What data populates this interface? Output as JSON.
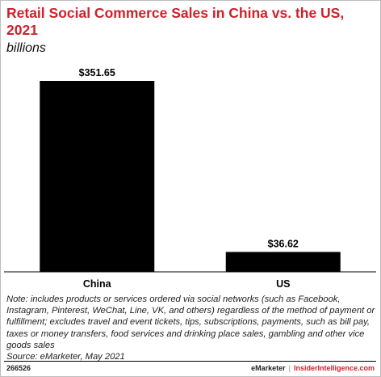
{
  "chart_data": {
    "type": "bar",
    "title": "Retail Social Commerce Sales in China vs. the US, 2021",
    "subtitle": "billions",
    "categories": [
      "China",
      "US"
    ],
    "values": [
      351.65,
      36.62
    ],
    "value_labels": [
      "$351.65",
      "$36.62"
    ],
    "xlabel": "",
    "ylabel": "",
    "ylim": [
      0,
      351.65
    ],
    "grid": false,
    "legend": "none",
    "bar_color": "#000000"
  },
  "notes": {
    "note": "Note: includes products or services ordered via social networks (such as Facebook, Instagram, Pinterest, WeChat, Line, VK, and others) regardless of the method of payment or fulfillment; excludes travel and event tickets, tips, subscriptions, payments, such as bill pay, taxes or money transfers, food services and drinking place sales, gambling and other vice goods sales",
    "source": "Source: eMarketer, May 2021"
  },
  "footer": {
    "chart_id": "266526",
    "brand_left": "eMarketer",
    "separator": "|",
    "brand_right": "InsiderIntelligence.com"
  },
  "colors": {
    "title": "#d0202a",
    "bars": "#000000",
    "brand_accent": "#d0202a"
  }
}
